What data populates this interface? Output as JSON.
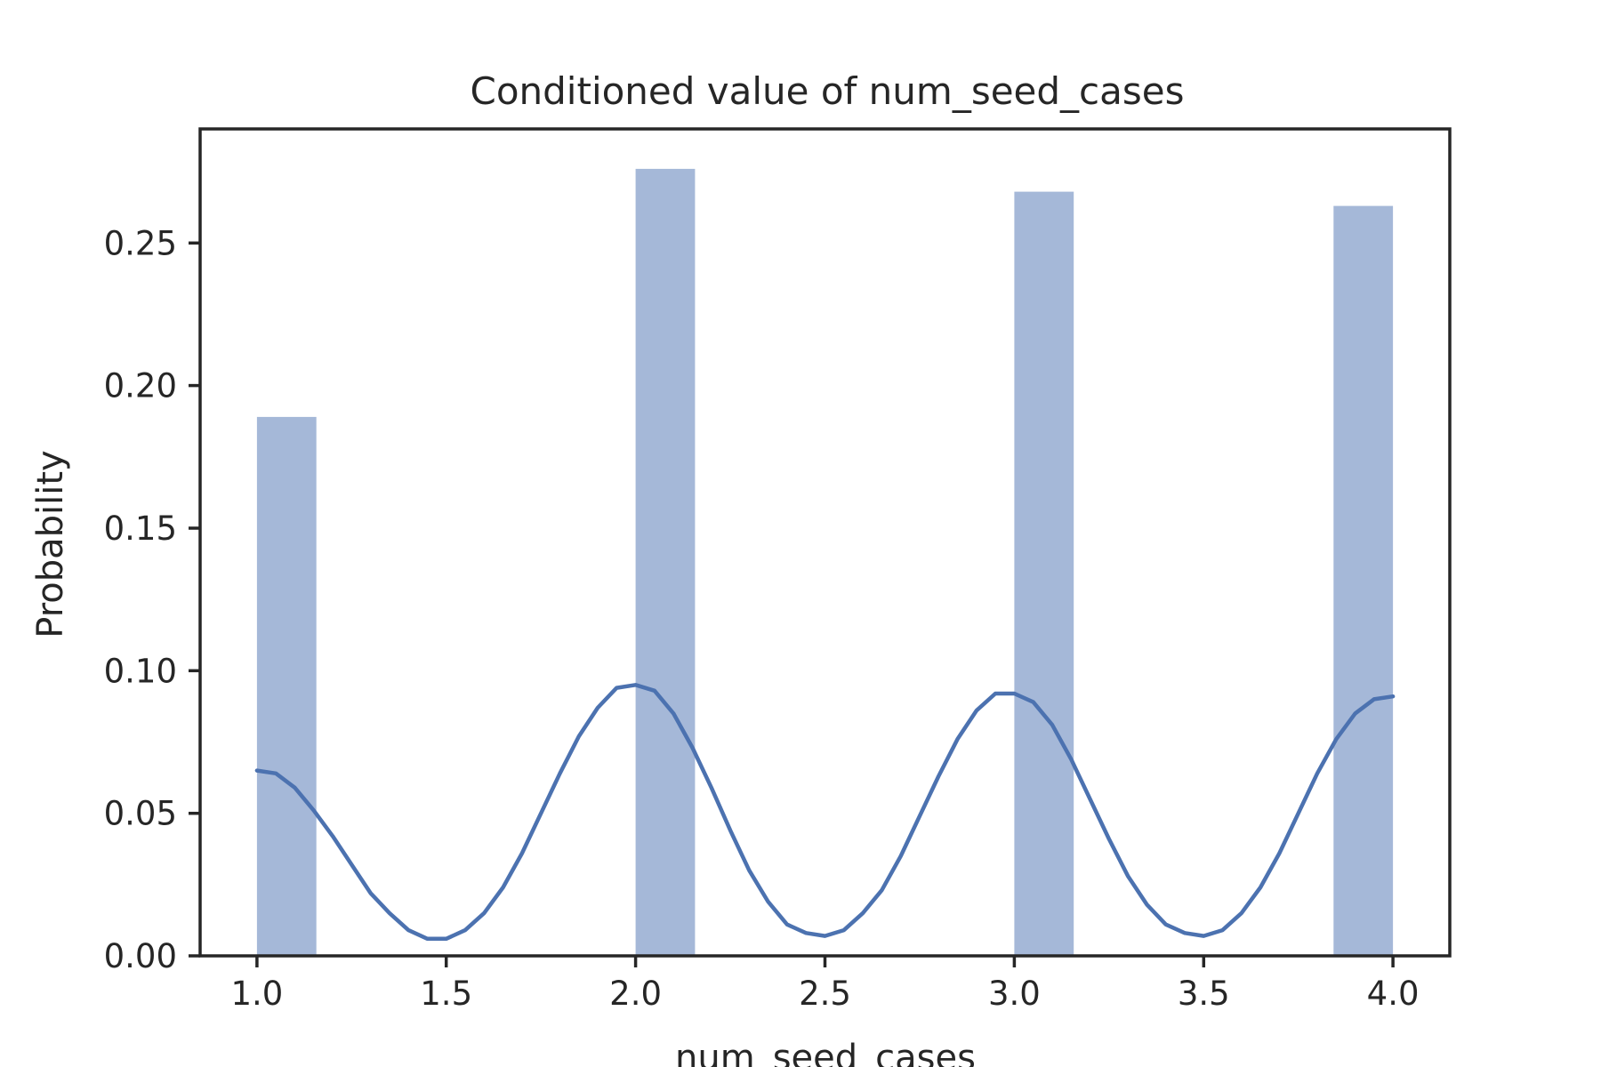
{
  "chart_data": {
    "type": "bar",
    "title": "Conditioned value of num_seed_cases",
    "xlabel": "num_seed_cases",
    "ylabel": "Probability",
    "xlim": [
      0.85,
      4.15
    ],
    "ylim": [
      0.0,
      0.29
    ],
    "xticks": [
      "1.0",
      "1.5",
      "2.0",
      "2.5",
      "3.0",
      "3.5",
      "4.0"
    ],
    "yticks": [
      "0.00",
      "0.05",
      "0.10",
      "0.15",
      "0.20",
      "0.25"
    ],
    "grid": false,
    "legend": "none",
    "bar_color": "#a5b8d8",
    "line_color": "#4c72b0",
    "bars": [
      {
        "x_start": 1.0,
        "x_end": 1.157,
        "value": 0.189
      },
      {
        "x_start": 2.0,
        "x_end": 2.157,
        "value": 0.276
      },
      {
        "x_start": 3.0,
        "x_end": 3.157,
        "value": 0.268
      },
      {
        "x_start": 3.843,
        "x_end": 4.0,
        "value": 0.263
      }
    ],
    "kde": {
      "x": [
        1.0,
        1.05,
        1.1,
        1.15,
        1.2,
        1.25,
        1.3,
        1.35,
        1.4,
        1.45,
        1.5,
        1.55,
        1.6,
        1.65,
        1.7,
        1.75,
        1.8,
        1.85,
        1.9,
        1.95,
        2.0,
        2.05,
        2.1,
        2.15,
        2.2,
        2.25,
        2.3,
        2.35,
        2.4,
        2.45,
        2.5,
        2.55,
        2.6,
        2.65,
        2.7,
        2.75,
        2.8,
        2.85,
        2.9,
        2.95,
        3.0,
        3.05,
        3.1,
        3.15,
        3.2,
        3.25,
        3.3,
        3.35,
        3.4,
        3.45,
        3.5,
        3.55,
        3.6,
        3.65,
        3.7,
        3.75,
        3.8,
        3.85,
        3.9,
        3.95,
        4.0
      ],
      "y": [
        0.065,
        0.064,
        0.059,
        0.051,
        0.042,
        0.032,
        0.022,
        0.015,
        0.009,
        0.006,
        0.006,
        0.009,
        0.015,
        0.024,
        0.036,
        0.05,
        0.064,
        0.077,
        0.087,
        0.094,
        0.095,
        0.093,
        0.085,
        0.073,
        0.059,
        0.044,
        0.03,
        0.019,
        0.011,
        0.008,
        0.007,
        0.009,
        0.015,
        0.023,
        0.035,
        0.049,
        0.063,
        0.076,
        0.086,
        0.092,
        0.092,
        0.089,
        0.081,
        0.069,
        0.055,
        0.041,
        0.028,
        0.018,
        0.011,
        0.008,
        0.007,
        0.009,
        0.015,
        0.024,
        0.036,
        0.05,
        0.064,
        0.076,
        0.085,
        0.09,
        0.091
      ]
    }
  }
}
